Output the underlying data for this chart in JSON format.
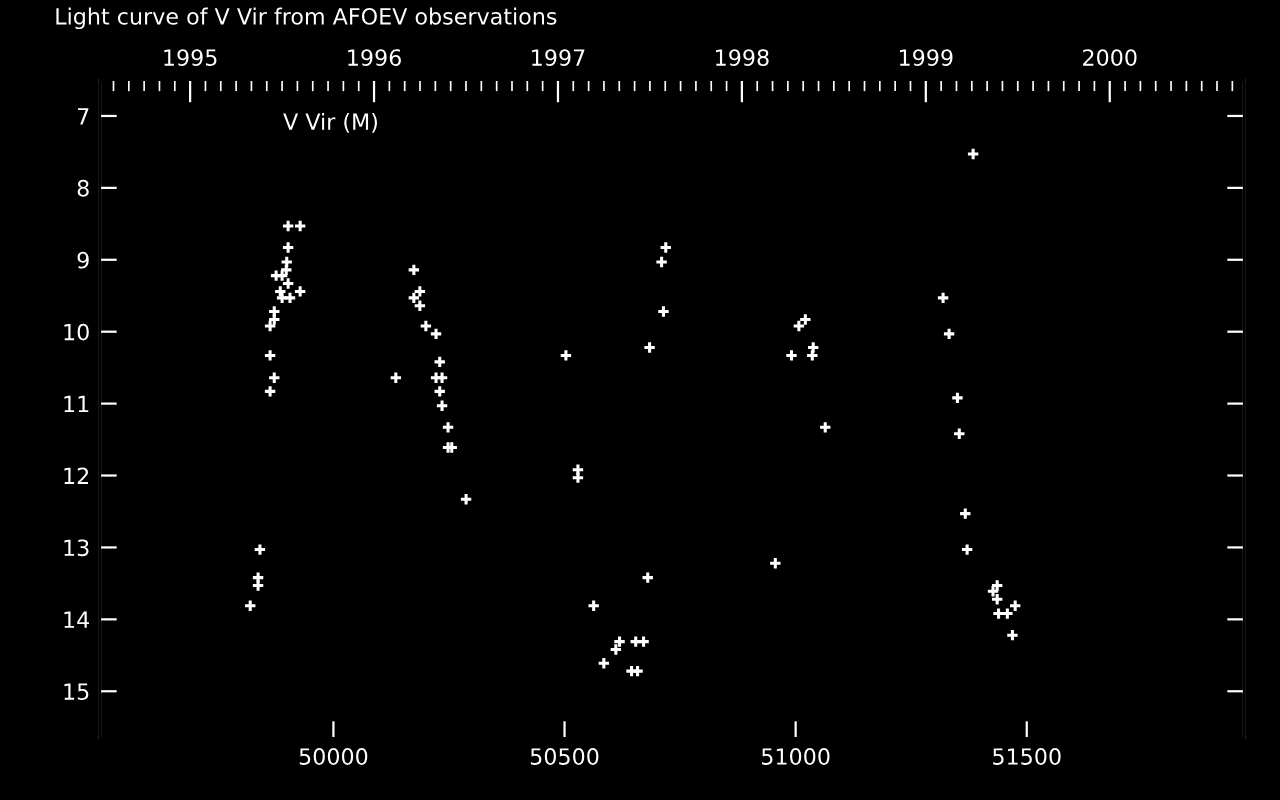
{
  "chart_data": {
    "type": "scatter",
    "title": "Light curve of V Vir from AFOEV observations",
    "annotations": [
      "V Vir (M)"
    ],
    "series": [
      {
        "color": "#ffffff",
        "marker": "cross",
        "x": [
          49902,
          49928,
          49902,
          49899,
          49898,
          49876,
          49889,
          49902,
          49885,
          49928,
          49889,
          49906,
          49872,
          49872,
          49863,
          49863,
          49872,
          49863,
          49841,
          49837,
          49837,
          49820,
          50174,
          50187,
          50174,
          50187,
          50200,
          50222,
          50230,
          50135,
          50222,
          50235,
          50230,
          50235,
          50248,
          50248,
          50256,
          50287,
          50719,
          50710,
          50714,
          50684,
          50503,
          51007,
          51021,
          51038,
          50991,
          51036,
          51064,
          50529,
          50529,
          50956,
          50680,
          50563,
          50619,
          50654,
          50671,
          50611,
          50585,
          50645,
          50658,
          51384,
          51319,
          51332,
          51350,
          51354,
          51367,
          51371,
          51436,
          51427,
          51436,
          51475,
          51439,
          51458,
          51469
        ],
        "values": [
          8.53,
          8.53,
          8.83,
          9.03,
          9.14,
          9.22,
          9.22,
          9.33,
          9.44,
          9.44,
          9.53,
          9.53,
          9.72,
          9.83,
          9.92,
          10.33,
          10.64,
          10.83,
          13.03,
          13.42,
          13.53,
          13.81,
          9.14,
          9.44,
          9.53,
          9.64,
          9.92,
          10.03,
          10.42,
          10.64,
          10.64,
          10.64,
          10.83,
          11.03,
          11.33,
          11.61,
          11.61,
          12.33,
          8.83,
          9.03,
          9.72,
          10.22,
          10.33,
          9.92,
          9.83,
          10.22,
          10.33,
          10.33,
          11.33,
          11.92,
          12.03,
          13.22,
          13.42,
          13.81,
          14.31,
          14.31,
          14.31,
          14.42,
          14.61,
          14.72,
          14.72,
          7.53,
          9.53,
          10.03,
          10.92,
          11.42,
          12.53,
          13.03,
          13.53,
          13.61,
          13.72,
          13.81,
          13.92,
          13.92,
          14.22
        ]
      }
    ],
    "xlim": [
      49495,
      51970
    ],
    "xticks": [
      50000,
      50500,
      51000,
      51500
    ],
    "ylim": [
      15.65,
      6.5
    ],
    "yticks": [
      7,
      8,
      9,
      10,
      11,
      12,
      13,
      14,
      15
    ],
    "x2lim": [
      1994.51,
      2000.73
    ],
    "x2ticks": [
      1995,
      1996,
      1997,
      1998,
      1999,
      2000
    ],
    "grid": false
  }
}
